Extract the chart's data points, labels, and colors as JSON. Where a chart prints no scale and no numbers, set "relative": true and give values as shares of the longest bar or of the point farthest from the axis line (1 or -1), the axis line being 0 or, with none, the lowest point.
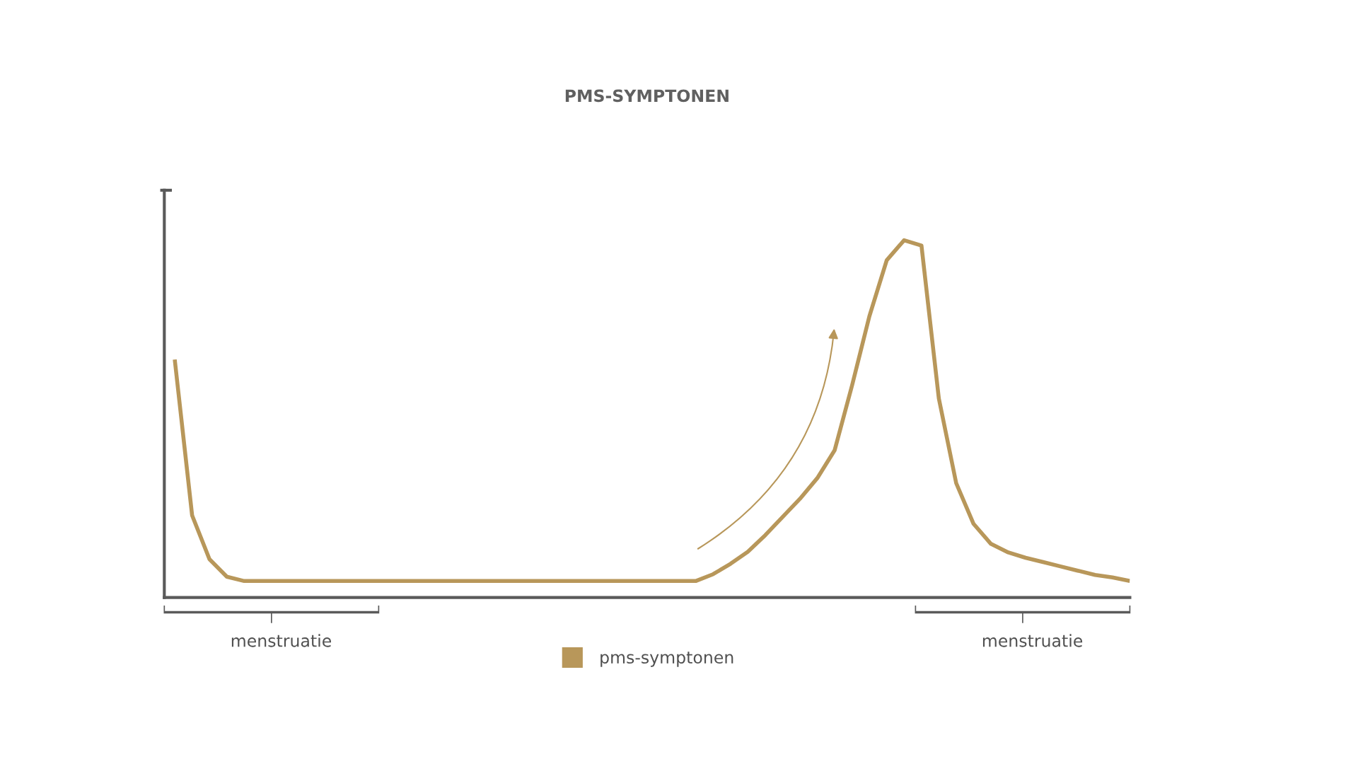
{
  "chart_data": {
    "type": "line",
    "title": "PMS-SYMPTONEN",
    "relative": true,
    "legend": "bottom",
    "grid": false,
    "marker": "none",
    "line_style": "solid",
    "categories": [
      null,
      null,
      null,
      null,
      null,
      null,
      null,
      null,
      null,
      null,
      null,
      null,
      null,
      null,
      null,
      null,
      null,
      null,
      null,
      null,
      null,
      null,
      null,
      null,
      null,
      null,
      null,
      null,
      null,
      null,
      null,
      null,
      null,
      null,
      null,
      null,
      null,
      null,
      null,
      null,
      null,
      null,
      null,
      null,
      null,
      null,
      null,
      null,
      null,
      null,
      null,
      null,
      null,
      null,
      null,
      null
    ],
    "series": [
      {
        "name": "pms-symptonen",
        "color": "#b8975a",
        "values": [
          0.666,
          0.23,
          0.107,
          0.058,
          0.046,
          0.046,
          0.046,
          0.046,
          0.046,
          0.046,
          0.046,
          0.046,
          0.046,
          0.046,
          0.046,
          0.046,
          0.046,
          0.046,
          0.046,
          0.046,
          0.046,
          0.046,
          0.046,
          0.046,
          0.046,
          0.046,
          0.046,
          0.046,
          0.046,
          0.046,
          0.046,
          0.065,
          0.094,
          0.128,
          0.174,
          0.225,
          0.276,
          0.334,
          0.412,
          0.593,
          0.787,
          0.944,
          1,
          0.985,
          0.557,
          0.32,
          0.206,
          0.15,
          0.126,
          0.111,
          0.099,
          0.087,
          0.075,
          0.063,
          0.056,
          0.046
        ]
      }
    ],
    "annotations": [
      "menstruatie",
      "menstruatie"
    ]
  }
}
